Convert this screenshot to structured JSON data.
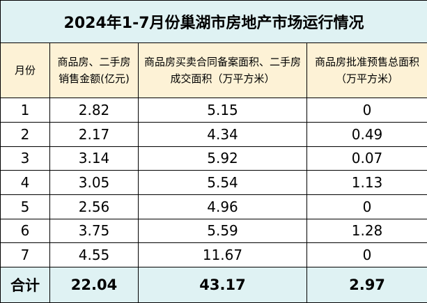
{
  "title": "2024年1-7月份巢湖市房地产市场运行情况",
  "table": {
    "header": [
      "月份",
      "商品房、二手房销售金额(亿元)",
      "商品房买卖合同备案面积、二手房成交面积（万平方米）",
      "商品房批准预售总面积（万平方米）"
    ],
    "rows": [
      [
        "1",
        "2.82",
        "5.15",
        "0"
      ],
      [
        "2",
        "2.17",
        "4.34",
        "0.49"
      ],
      [
        "3",
        "3.14",
        "5.92",
        "0.07"
      ],
      [
        "4",
        "3.05",
        "5.54",
        "1.13"
      ],
      [
        "5",
        "2.56",
        "4.96",
        "0"
      ],
      [
        "6",
        "3.75",
        "5.59",
        "1.28"
      ],
      [
        "7",
        "4.55",
        "11.67",
        "0"
      ]
    ],
    "total": [
      "合计",
      "22.04",
      "43.17",
      "2.97"
    ]
  }
}
